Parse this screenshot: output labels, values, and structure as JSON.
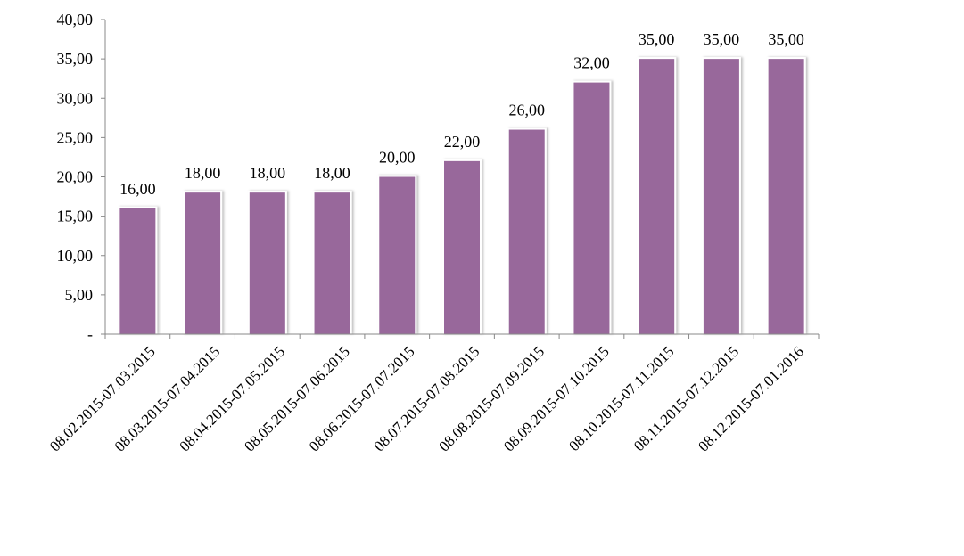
{
  "chart_data": {
    "type": "bar",
    "categories": [
      "08.02.2015-07.03.2015",
      "08.03.2015-07.04.2015",
      "08.04.2015-07.05.2015",
      "08.05.2015-07.06.2015",
      "08.06.2015-07.07.2015",
      "08.07.2015-07.08.2015",
      "08.08.2015-07.09.2015",
      "08.09.2015-07.10.2015",
      "08.10.2015-07.11.2015",
      "08.11.2015-07.12.2015",
      "08.12.2015-07.01.2016"
    ],
    "values": [
      16,
      18,
      18,
      18,
      20,
      22,
      26,
      32,
      35,
      35,
      35
    ],
    "data_labels": [
      "16,00",
      "18,00",
      "18,00",
      "18,00",
      "20,00",
      "22,00",
      "26,00",
      "32,00",
      "35,00",
      "35,00",
      "35,00"
    ],
    "y_ticks": [
      {
        "value": 0,
        "label": "-"
      },
      {
        "value": 5,
        "label": "5,00"
      },
      {
        "value": 10,
        "label": "10,00"
      },
      {
        "value": 15,
        "label": "15,00"
      },
      {
        "value": 20,
        "label": "20,00"
      },
      {
        "value": 25,
        "label": "25,00"
      },
      {
        "value": 30,
        "label": "30,00"
      },
      {
        "value": 35,
        "label": "35,00"
      },
      {
        "value": 40,
        "label": "40,00"
      }
    ],
    "ylim": [
      0,
      40
    ],
    "title": "",
    "xlabel": "",
    "ylabel": "",
    "grid": false,
    "legend": "none",
    "bar_color": "#98689B"
  }
}
